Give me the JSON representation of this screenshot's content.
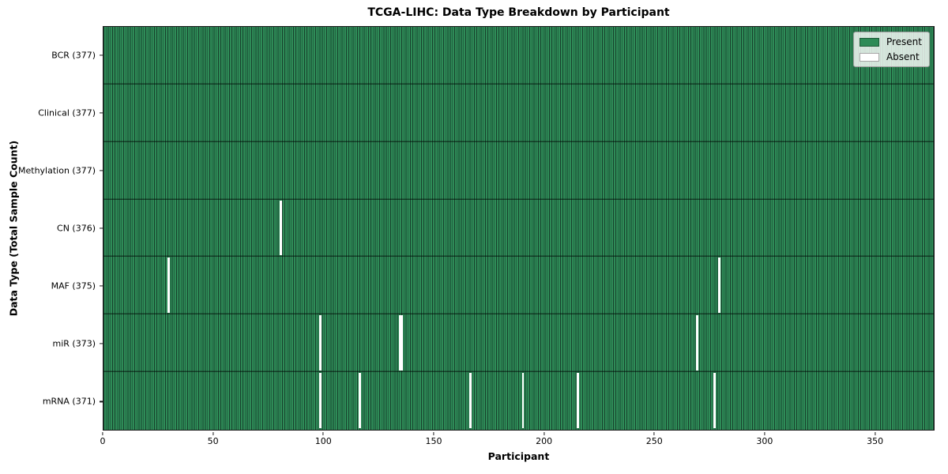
{
  "chart_data": {
    "type": "heatmap",
    "title": "TCGA-LIHC: Data Type Breakdown by Participant",
    "xlabel": "Participant",
    "ylabel": "Data Type (Total Sample Count)",
    "x_ticks": [
      0,
      50,
      100,
      150,
      200,
      250,
      300,
      350
    ],
    "x_range": [
      0,
      377
    ],
    "n_participants": 377,
    "grid": false,
    "legend_position": "upper right",
    "legend": [
      {
        "label": "Present",
        "color": "#2e8b57"
      },
      {
        "label": "Absent",
        "color": "#ffffff"
      }
    ],
    "rows": [
      {
        "label": "BCR (377)",
        "data_type": "BCR",
        "total_samples": 377,
        "absent_participants": []
      },
      {
        "label": "Clinical (377)",
        "data_type": "Clinical",
        "total_samples": 377,
        "absent_participants": []
      },
      {
        "label": "Methylation (377)",
        "data_type": "Methylation",
        "total_samples": 377,
        "absent_participants": []
      },
      {
        "label": "CN (376)",
        "data_type": "CN",
        "total_samples": 376,
        "absent_participants": [
          80
        ]
      },
      {
        "label": "MAF (375)",
        "data_type": "MAF",
        "total_samples": 375,
        "absent_participants": [
          29,
          279
        ]
      },
      {
        "label": "miR (373)",
        "data_type": "miR",
        "total_samples": 373,
        "absent_participants": [
          98,
          134,
          135,
          269
        ]
      },
      {
        "label": "mRNA (371)",
        "data_type": "mRNA",
        "total_samples": 371,
        "absent_participants": [
          98,
          116,
          166,
          190,
          215,
          277
        ]
      }
    ],
    "colors": {
      "present": "#2e8b57",
      "absent": "#ffffff",
      "cell_edge": "#17402c",
      "row_separator": "#0c2a1d",
      "spine": "#1a1a1a"
    }
  }
}
